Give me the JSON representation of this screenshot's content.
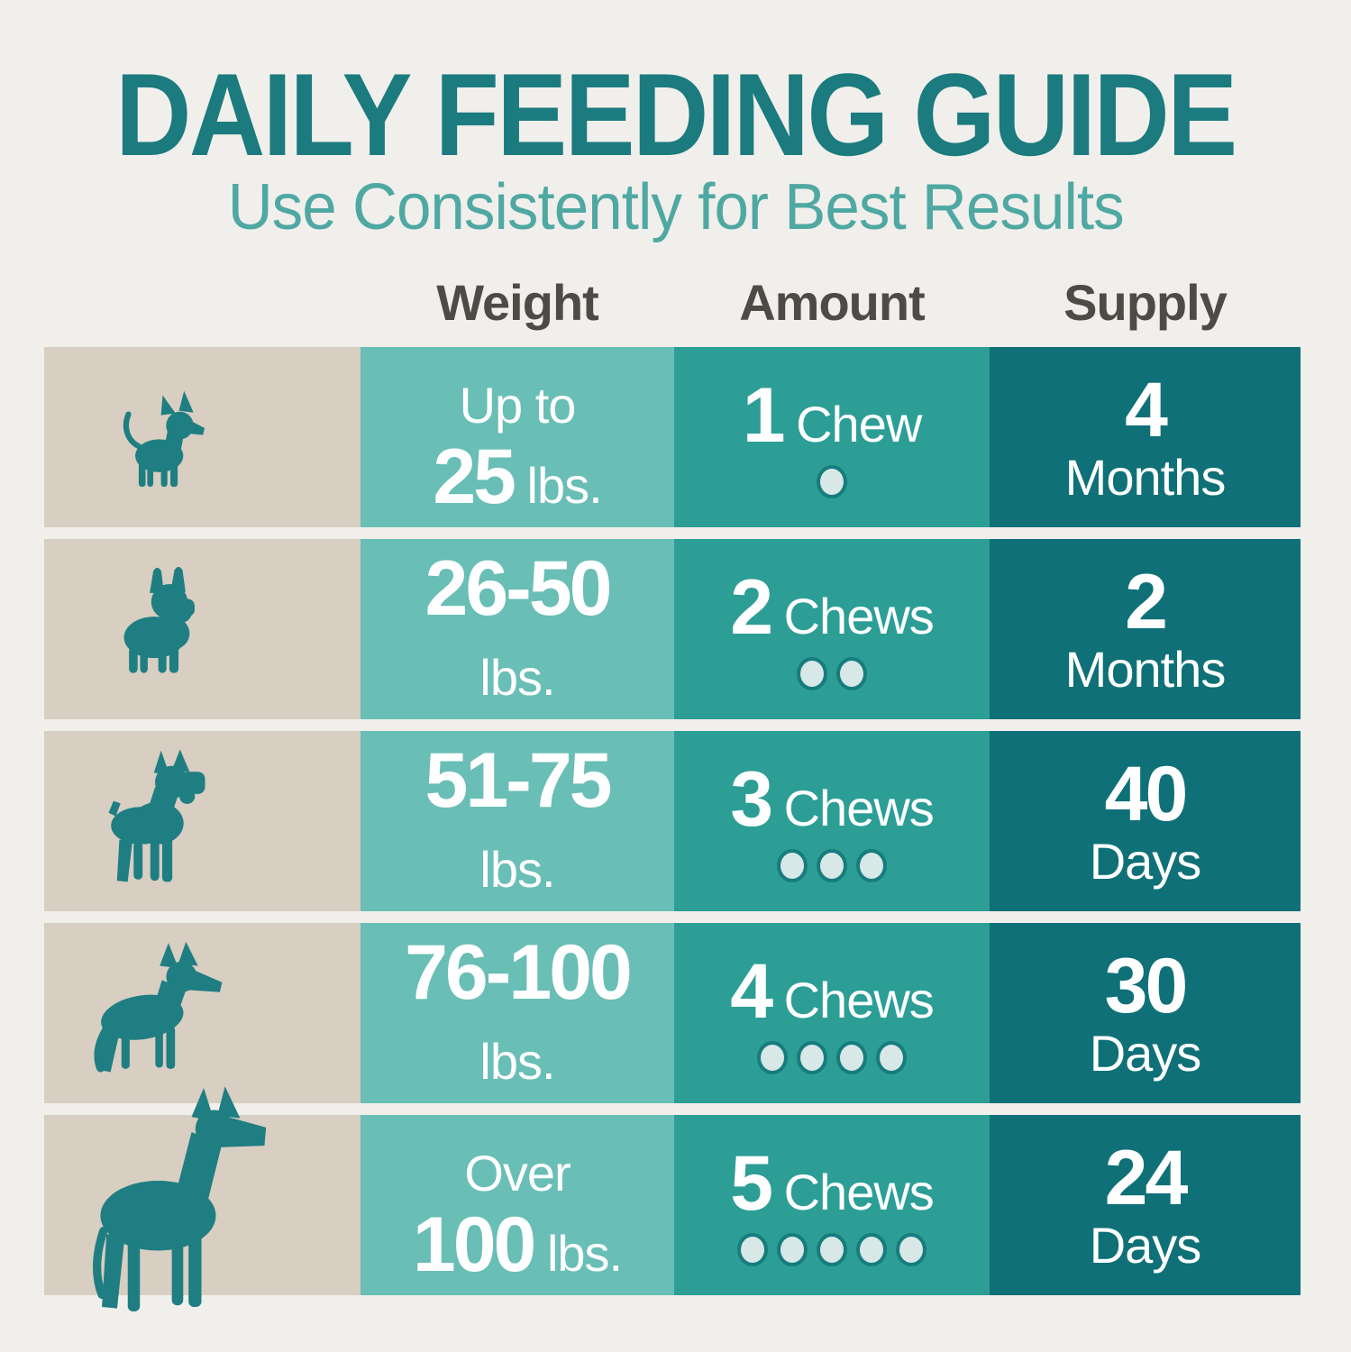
{
  "page": {
    "title": "DAILY FEEDING GUIDE",
    "subtitle": "Use Consistently for Best Results"
  },
  "columns": {
    "weight": "Weight",
    "amount": "Amount",
    "supply": "Supply"
  },
  "palette": {
    "background": "#f1efec",
    "dog_cell": "#d8cec2",
    "weight_cell": "#69beb6",
    "amount_cell": "#2c9e96",
    "supply_cell": "#0f7078",
    "dog_silhouette": "#1f7e81",
    "title_text": "#1b7b7e",
    "subtitle_text": "#4fa8a2",
    "column_header_text": "#4c4b46",
    "cell_text": "#ffffff",
    "dot_fill": "#d7e8e6",
    "dot_ring": "#177c7e"
  },
  "table": {
    "rows": [
      {
        "dog": "chihuahua",
        "weight_line1_strong": "",
        "weight_line1": "Up to",
        "weight_line2_strong": "25",
        "weight_line2": " lbs.",
        "amount_count": "1",
        "amount_unit": " Chew",
        "chew_dots": 1,
        "supply_value": "4",
        "supply_unit": "Months"
      },
      {
        "dog": "french-bulldog",
        "weight_line1_strong": "26-50",
        "weight_line1": "",
        "weight_line2_strong": "",
        "weight_line2": "lbs.",
        "amount_count": "2",
        "amount_unit": " Chews",
        "chew_dots": 2,
        "supply_value": "2",
        "supply_unit": "Months"
      },
      {
        "dog": "boxer",
        "weight_line1_strong": "51-75",
        "weight_line1": "",
        "weight_line2_strong": "",
        "weight_line2": "lbs.",
        "amount_count": "3",
        "amount_unit": " Chews",
        "chew_dots": 3,
        "supply_value": "40",
        "supply_unit": "Days"
      },
      {
        "dog": "german-shepherd",
        "weight_line1_strong": "76-100",
        "weight_line1": "",
        "weight_line2_strong": "",
        "weight_line2": "lbs.",
        "amount_count": "4",
        "amount_unit": " Chews",
        "chew_dots": 4,
        "supply_value": "30",
        "supply_unit": "Days"
      },
      {
        "dog": "great-dane",
        "weight_line1_strong": "",
        "weight_line1": "Over",
        "weight_line2_strong": "100",
        "weight_line2": " lbs.",
        "amount_count": "5",
        "amount_unit": " Chews",
        "chew_dots": 5,
        "supply_value": "24",
        "supply_unit": "Days"
      }
    ]
  }
}
